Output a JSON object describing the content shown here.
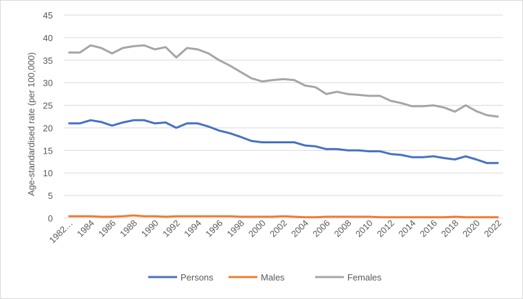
{
  "chart_data": {
    "type": "line",
    "title": "",
    "xlabel": "",
    "ylabel": "Age-standardised rate (per 100,000)",
    "ylim": [
      0,
      45
    ],
    "ytick_step": 5,
    "grid": true,
    "legend_position": "bottom",
    "x_tick_labels": [
      "1982…",
      "1984",
      "1986",
      "1988",
      "1990",
      "1992",
      "1994",
      "1996",
      "1998",
      "2000",
      "2002",
      "2004",
      "2006",
      "2008",
      "2010",
      "2012",
      "2014",
      "2016",
      "2018",
      "2020",
      "2022"
    ],
    "x": [
      1982,
      1983,
      1984,
      1985,
      1986,
      1987,
      1988,
      1989,
      1990,
      1991,
      1992,
      1993,
      1994,
      1995,
      1996,
      1997,
      1998,
      1999,
      2000,
      2001,
      2002,
      2003,
      2004,
      2005,
      2006,
      2007,
      2008,
      2009,
      2010,
      2011,
      2012,
      2013,
      2014,
      2015,
      2016,
      2017,
      2018,
      2019,
      2020,
      2021,
      2022
    ],
    "series": [
      {
        "name": "Persons",
        "color": "#4472C4",
        "values": [
          21.0,
          21.0,
          21.7,
          21.3,
          20.5,
          21.2,
          21.7,
          21.7,
          21.0,
          21.2,
          20.0,
          21.0,
          21.0,
          20.3,
          19.4,
          18.8,
          18.0,
          17.1,
          16.8,
          16.8,
          16.8,
          16.8,
          16.1,
          15.9,
          15.3,
          15.3,
          15.0,
          15.0,
          14.8,
          14.8,
          14.2,
          14.0,
          13.5,
          13.5,
          13.7,
          13.3,
          13.0,
          13.7,
          13.0,
          12.2,
          12.2
        ]
      },
      {
        "name": "Males",
        "color": "#ED7D31",
        "values": [
          0.4,
          0.4,
          0.4,
          0.3,
          0.3,
          0.4,
          0.6,
          0.4,
          0.4,
          0.3,
          0.4,
          0.4,
          0.4,
          0.4,
          0.4,
          0.4,
          0.3,
          0.3,
          0.3,
          0.3,
          0.4,
          0.3,
          0.2,
          0.2,
          0.3,
          0.3,
          0.3,
          0.3,
          0.3,
          0.2,
          0.2,
          0.2,
          0.2,
          0.2,
          0.2,
          0.2,
          0.3,
          0.2,
          0.2,
          0.2,
          0.2
        ]
      },
      {
        "name": "Females",
        "color": "#A5A5A5",
        "values": [
          36.7,
          36.7,
          38.3,
          37.7,
          36.5,
          37.7,
          38.1,
          38.3,
          37.4,
          37.9,
          35.6,
          37.7,
          37.4,
          36.5,
          35.0,
          33.8,
          32.4,
          31.0,
          30.3,
          30.6,
          30.8,
          30.6,
          29.4,
          29.0,
          27.5,
          28.0,
          27.5,
          27.3,
          27.1,
          27.1,
          26.0,
          25.5,
          24.8,
          24.8,
          25.0,
          24.5,
          23.6,
          25.0,
          23.7,
          22.8,
          22.5
        ]
      }
    ]
  }
}
